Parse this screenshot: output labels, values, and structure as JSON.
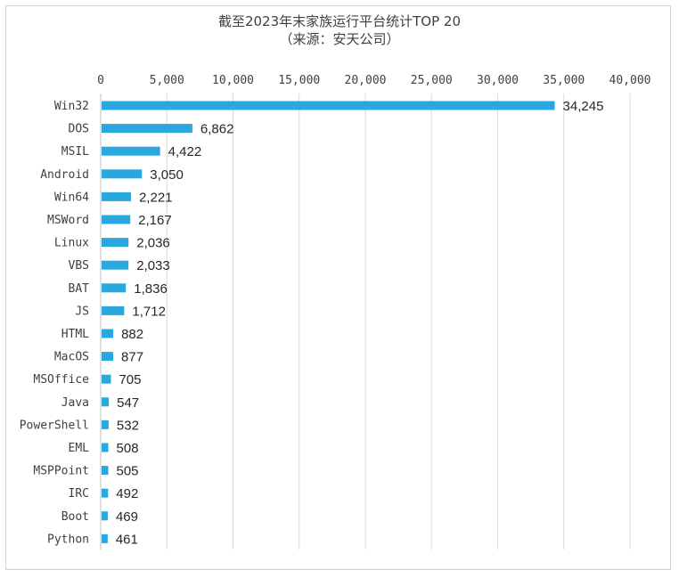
{
  "chart_data": {
    "type": "bar",
    "orientation": "horizontal",
    "title": "截至2023年末家族运行平台统计TOP 20",
    "subtitle": "（来源：安天公司）",
    "categories": [
      "Win32",
      "DOS",
      "MSIL",
      "Android",
      "Win64",
      "MSWord",
      "Linux",
      "VBS",
      "BAT",
      "JS",
      "HTML",
      "MacOS",
      "MSOffice",
      "Java",
      "PowerShell",
      "EML",
      "MSPPoint",
      "IRC",
      "Boot",
      "Python"
    ],
    "values": [
      34245,
      6862,
      4422,
      3050,
      2221,
      2167,
      2036,
      2033,
      1836,
      1712,
      882,
      877,
      705,
      547,
      532,
      508,
      505,
      492,
      469,
      461
    ],
    "value_labels": [
      "34,245",
      "6,862",
      "4,422",
      "3,050",
      "2,221",
      "2,167",
      "2,036",
      "2,033",
      "1,836",
      "1,712",
      "882",
      "877",
      "705",
      "547",
      "532",
      "508",
      "505",
      "492",
      "469",
      "461"
    ],
    "x_ticks": [
      0,
      5000,
      10000,
      15000,
      20000,
      25000,
      30000,
      35000,
      40000
    ],
    "x_tick_labels": [
      "0",
      "5,000",
      "10,000",
      "15,000",
      "20,000",
      "25,000",
      "30,000",
      "35,000",
      "40,000"
    ],
    "xlim": [
      0,
      40000
    ],
    "xaxis_position": "top",
    "grid": true,
    "legend": "none",
    "bar_color": "#29a8e0"
  }
}
